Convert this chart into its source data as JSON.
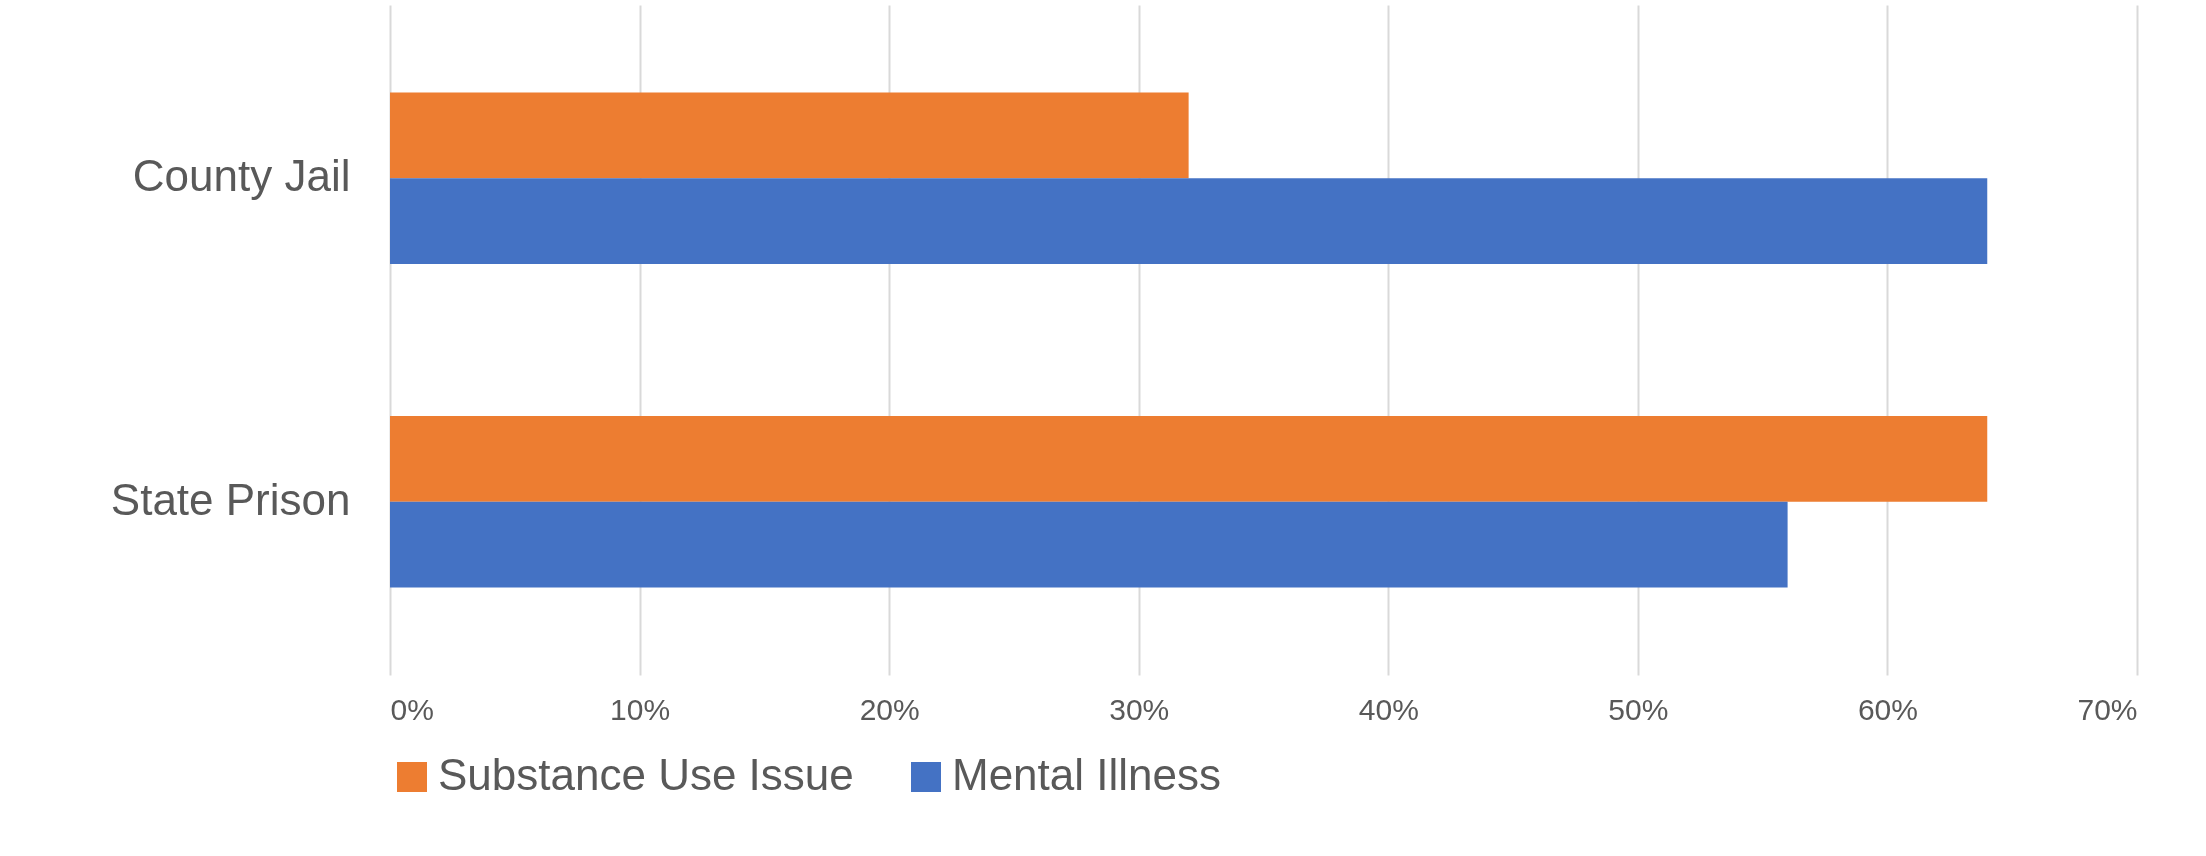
{
  "chart_data": {
    "type": "bar",
    "orientation": "horizontal",
    "categories": [
      "County Jail",
      "State Prison"
    ],
    "series": [
      {
        "name": "Substance Use Issue",
        "color": "#ed7d31",
        "values": [
          32,
          64
        ]
      },
      {
        "name": "Mental Illness",
        "color": "#4472c4",
        "values": [
          64,
          56
        ]
      }
    ],
    "xlim": [
      0,
      70
    ],
    "xticks": [
      {
        "value": 0,
        "label": "0%"
      },
      {
        "value": 10,
        "label": "10%"
      },
      {
        "value": 20,
        "label": "20%"
      },
      {
        "value": 30,
        "label": "30%"
      },
      {
        "value": 40,
        "label": "40%"
      },
      {
        "value": 50,
        "label": "50%"
      },
      {
        "value": 60,
        "label": "60%"
      },
      {
        "value": 70,
        "label": "70%"
      }
    ],
    "grid": "x",
    "legend": "bottom"
  }
}
